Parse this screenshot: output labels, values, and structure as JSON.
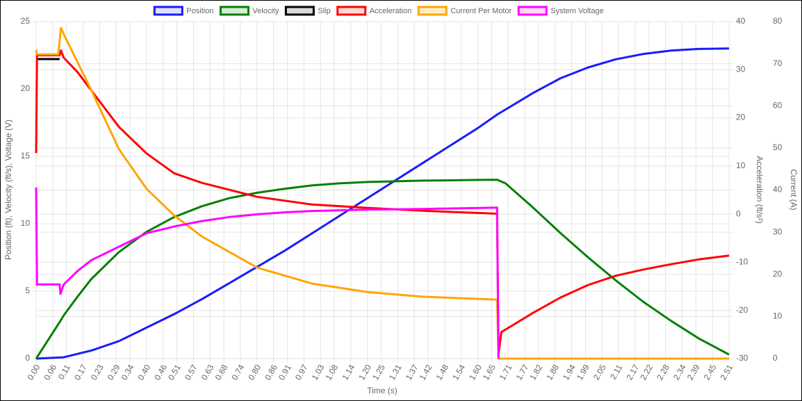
{
  "chart_data": {
    "type": "line",
    "x_label": "Time (s)",
    "y_label": "Position (ft), Velocity (ft/s), Voltage (V)",
    "y2_label": "Acceleration (ft/s²)",
    "y3_label": "Current (A)",
    "grid": true,
    "legend": "top",
    "xlim": [
      0,
      2.51
    ],
    "xticks": [
      {
        "value": 0,
        "label": "0.00"
      },
      0.06,
      0.11,
      0.17,
      0.23,
      0.29,
      0.34,
      {
        "value": 0.4,
        "label": "0.40"
      },
      0.46,
      0.51,
      0.57,
      0.63,
      0.68,
      0.74,
      {
        "value": 0.8,
        "label": "0.80"
      },
      0.86,
      0.91,
      0.97,
      1.03,
      1.08,
      1.14,
      {
        "value": 1.2,
        "label": "1.20"
      },
      1.25,
      1.31,
      1.37,
      1.42,
      1.48,
      1.54,
      {
        "value": 1.6,
        "label": "1.60"
      },
      1.65,
      1.71,
      1.77,
      1.82,
      1.88,
      1.94,
      1.99,
      2.05,
      2.11,
      2.17,
      2.22,
      2.28,
      2.34,
      2.39,
      2.45,
      2.51
    ],
    "ylim": [
      0,
      25
    ],
    "yticks": [
      0,
      5,
      10,
      15,
      20,
      25
    ],
    "y2lim": [
      -30,
      40
    ],
    "y2ticks": [
      -30,
      -20,
      -10,
      0,
      10,
      20,
      30,
      40
    ],
    "y3lim": [
      0,
      80
    ],
    "y3ticks": [
      0,
      10,
      20,
      30,
      40,
      50,
      60,
      70,
      80
    ],
    "series": [
      {
        "name": "Position",
        "color": "#1a1aff",
        "fill": "#e0e0ff",
        "x": [
          0,
          0.1,
          0.2,
          0.3,
          0.4,
          0.5,
          0.6,
          0.7,
          0.8,
          0.9,
          1.0,
          1.1,
          1.2,
          1.3,
          1.4,
          1.5,
          1.6,
          1.67,
          1.8,
          1.9,
          2.0,
          2.1,
          2.2,
          2.3,
          2.4,
          2.51
        ],
        "values": [
          0,
          0.1,
          0.6,
          1.3,
          2.3,
          3.3,
          4.4,
          5.6,
          6.8,
          8.0,
          9.3,
          10.6,
          11.9,
          13.2,
          14.5,
          15.8,
          17.1,
          18.1,
          19.7,
          20.8,
          21.6,
          22.2,
          22.6,
          22.85,
          22.97,
          23.0
        ]
      },
      {
        "name": "Velocity",
        "color": "#008000",
        "fill": "#d6ecd6",
        "x": [
          0,
          0.085,
          0.1,
          0.15,
          0.2,
          0.3,
          0.4,
          0.5,
          0.6,
          0.7,
          0.8,
          0.9,
          1.0,
          1.1,
          1.2,
          1.3,
          1.4,
          1.5,
          1.6,
          1.67,
          1.7,
          1.8,
          1.9,
          2.0,
          2.1,
          2.2,
          2.3,
          2.4,
          2.51
        ],
        "values": [
          0,
          2.7,
          3.2,
          4.6,
          5.9,
          7.9,
          9.4,
          10.5,
          11.3,
          11.9,
          12.3,
          12.6,
          12.85,
          13.0,
          13.1,
          13.15,
          13.2,
          13.22,
          13.25,
          13.27,
          13.0,
          11.2,
          9.3,
          7.5,
          5.8,
          4.2,
          2.8,
          1.5,
          0.3
        ]
      },
      {
        "name": "Slip",
        "color": "#000000",
        "fill": "#d9d9d9",
        "axis": "y2",
        "x": [
          0.003,
          0.085
        ],
        "values": [
          32.2,
          32.2
        ]
      },
      {
        "name": "Acceleration",
        "color": "#ff0000",
        "fill": "#ffd9d9",
        "axis": "y2",
        "x": [
          0,
          0.003,
          0.085,
          0.09,
          0.1,
          0.15,
          0.2,
          0.3,
          0.4,
          0.5,
          0.6,
          0.8,
          1.0,
          1.2,
          1.4,
          1.67,
          1.675,
          1.685,
          1.8,
          1.9,
          2.0,
          2.1,
          2.2,
          2.3,
          2.4,
          2.51
        ],
        "values": [
          12.7,
          33.0,
          33.0,
          34.0,
          32.5,
          29.5,
          25.7,
          18.1,
          12.6,
          8.5,
          6.5,
          3.6,
          2.0,
          1.3,
          0.7,
          0.1,
          -29.1,
          -24.5,
          -20.5,
          -17.3,
          -14.7,
          -12.8,
          -11.5,
          -10.4,
          -9.4,
          -8.6
        ]
      },
      {
        "name": "Current Per Motor",
        "color": "#ffa500",
        "fill": "#ffeccc",
        "axis": "y3",
        "x": [
          0,
          0.003,
          0.08,
          0.09,
          0.1,
          0.2,
          0.3,
          0.4,
          0.5,
          0.6,
          0.8,
          1.0,
          1.2,
          1.4,
          1.67,
          1.675,
          2.51
        ],
        "values": [
          73.3,
          72.2,
          72.2,
          78.5,
          77,
          63.7,
          49.7,
          40.3,
          34.0,
          29.0,
          21.6,
          17.8,
          15.8,
          14.7,
          14.0,
          0,
          0
        ]
      },
      {
        "name": "System Voltage",
        "color": "#ff00ff",
        "fill": "#ffd9ff",
        "x": [
          0,
          0.003,
          0.085,
          0.088,
          0.1,
          0.15,
          0.2,
          0.3,
          0.4,
          0.5,
          0.6,
          0.7,
          0.8,
          0.9,
          1.0,
          1.2,
          1.4,
          1.67,
          1.675
        ],
        "values": [
          12.7,
          5.5,
          5.5,
          4.8,
          5.5,
          6.5,
          7.3,
          8.3,
          9.3,
          9.8,
          10.2,
          10.5,
          10.7,
          10.85,
          10.95,
          11.05,
          11.1,
          11.2,
          0
        ]
      }
    ]
  }
}
